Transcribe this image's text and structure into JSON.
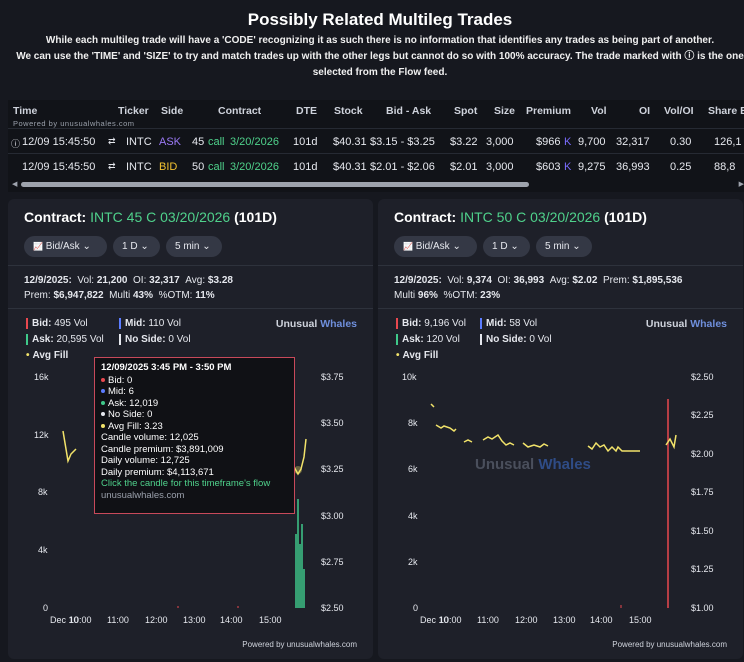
{
  "header": {
    "title": "Possibly Related Multileg Trades",
    "line1": "While each multileg trade will have a 'CODE' recognizing it as such there is no information that identifies any trades as being part of another.",
    "line2": "We can use the 'TIME' and 'SIZE' to try and match trades up with the other legs but cannot do so with 100% accuracy. The trade marked with ⓘ is the one",
    "line3": "selected from the Flow feed."
  },
  "table": {
    "columns": [
      "Time",
      "Ticker",
      "Side",
      "Contract",
      "DTE",
      "Stock",
      "Bid - Ask",
      "Spot",
      "Size",
      "Premium",
      "Vol",
      "OI",
      "Vol/OI",
      "Share E"
    ],
    "powered": "Powered by unusualwhales.com",
    "rows": [
      {
        "marker": "ⓘ",
        "time": "12/09 15:45:50",
        "link": "⇄",
        "ticker": "INTC",
        "side": "ASK",
        "strike": "45",
        "type": "call",
        "exp": "3/20/2026",
        "dte": "101d",
        "stock": "$40.31",
        "bidask": "$3.15 - $3.25",
        "spot": "$3.22",
        "size": "3,000",
        "premium": "$966",
        "premium_unit": "K",
        "vol": "9,700",
        "oi": "32,317",
        "voloi": "0.30",
        "share": "126,1"
      },
      {
        "marker": "",
        "time": "12/09 15:45:50",
        "link": "⇄",
        "ticker": "INTC",
        "side": "BID",
        "strike": "50",
        "type": "call",
        "exp": "3/20/2026",
        "dte": "101d",
        "stock": "$40.31",
        "bidask": "$2.01 - $2.06",
        "spot": "$2.01",
        "size": "3,000",
        "premium": "$603",
        "premium_unit": "K",
        "vol": "9,275",
        "oi": "36,993",
        "voloi": "0.25",
        "share": "88,8"
      }
    ]
  },
  "panels": [
    {
      "contract_label": "Contract:",
      "contract": "INTC 45 C 03/20/2026",
      "dte": "(101D)",
      "controls": [
        "Bid/Ask",
        "1 D",
        "5 min"
      ],
      "stats_line1": {
        "date": "12/9/2025:",
        "vol_label": "Vol:",
        "vol": "21,200",
        "oi_label": "OI:",
        "oi": "32,317",
        "avg_label": "Avg:",
        "avg": "$3.28"
      },
      "stats_line2": {
        "prem_label": "Prem:",
        "prem": "$6,947,822",
        "multi_label": "Multi",
        "multi": "43%",
        "otm_label": "%OTM:",
        "otm": "11%"
      },
      "legend": {
        "bid": "Bid:",
        "bid_vol": "495 Vol",
        "mid": "Mid:",
        "mid_vol": "110 Vol",
        "ask": "Ask:",
        "ask_vol": "20,595 Vol",
        "noside": "No Side:",
        "noside_vol": "0 Vol",
        "avgfill": "Avg Fill"
      },
      "brand": {
        "a": "Unusual",
        "b": "Whales"
      },
      "y_left": [
        "16k",
        "12k",
        "8k",
        "4k",
        "0"
      ],
      "y_right": [
        "$3.75",
        "$3.50",
        "$3.25",
        "$3.00",
        "$2.75",
        "$2.50"
      ],
      "x_ticks": [
        "Dec 10",
        "10:00",
        "11:00",
        "12:00",
        "13:00",
        "14:00",
        "15:00"
      ],
      "powered": "Powered by unusualwhales.com",
      "tooltip": {
        "title": "12/09/2025 3:45 PM - 3:50 PM",
        "bid": "Bid: 0",
        "mid": "Mid: 6",
        "ask": "Ask: 12,019",
        "noside": "No Side: 0",
        "avgfill": "Avg Fill: 3.23",
        "candle_volume": "Candle volume: 12,025",
        "candle_premium": "Candle premium: $3,891,009",
        "daily_volume": "Daily volume: 12,725",
        "daily_premium": "Daily premium: $4,113,671",
        "click": "Click the candle for this timeframe's flow",
        "site": "unusualwhales.com"
      }
    },
    {
      "contract_label": "Contract:",
      "contract": "INTC 50 C 03/20/2026",
      "dte": "(101D)",
      "controls": [
        "Bid/Ask",
        "1 D",
        "5 min"
      ],
      "stats_line1": {
        "date": "12/9/2025:",
        "vol_label": "Vol:",
        "vol": "9,374",
        "oi_label": "OI:",
        "oi": "36,993",
        "avg_label": "Avg:",
        "avg": "$2.02",
        "prem_label": "Prem:",
        "prem": "$1,895,536"
      },
      "stats_line2": {
        "multi_label": "Multi",
        "multi": "96%",
        "otm_label": "%OTM:",
        "otm": "23%"
      },
      "legend": {
        "bid": "Bid:",
        "bid_vol": "9,196 Vol",
        "mid": "Mid:",
        "mid_vol": "58 Vol",
        "ask": "Ask:",
        "ask_vol": "120 Vol",
        "noside": "No Side:",
        "noside_vol": "0 Vol",
        "avgfill": "Avg Fill"
      },
      "brand": {
        "a": "Unusual",
        "b": "Whales"
      },
      "y_left": [
        "10k",
        "8k",
        "6k",
        "4k",
        "2k",
        "0"
      ],
      "y_right": [
        "$2.50",
        "$2.25",
        "$2.00",
        "$1.75",
        "$1.50",
        "$1.25",
        "$1.00"
      ],
      "x_ticks": [
        "Dec 10",
        "10:00",
        "11:00",
        "12:00",
        "13:00",
        "14:00",
        "15:00"
      ],
      "powered": "Powered by unusualwhales.com"
    }
  ],
  "colors": {
    "ask": "#9b79f5",
    "bid": "#f2c230",
    "call": "#4fd18b",
    "bid_bar": "#e8484f",
    "ask_bar": "#3fc98a",
    "avg_line": "#f2e36a"
  }
}
